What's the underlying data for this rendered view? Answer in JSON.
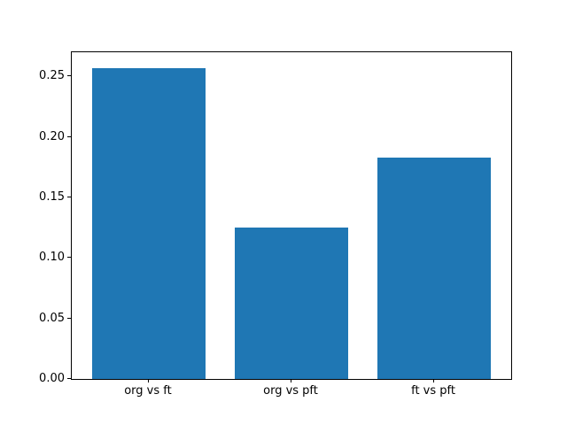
{
  "chart_data": {
    "type": "bar",
    "categories": [
      "org vs ft",
      "org vs pft",
      "ft vs pft"
    ],
    "values": [
      0.257,
      0.125,
      0.183
    ],
    "title": "",
    "xlabel": "",
    "ylabel": "",
    "ylim": [
      0,
      0.27
    ],
    "yticks": [
      0.0,
      0.05,
      0.1,
      0.15,
      0.2,
      0.25
    ],
    "ytick_label_format": "2-decimals",
    "bar_color": "#1f77b4",
    "bar_width_fraction": 0.8,
    "grid": false,
    "legend": null,
    "background_color": "#ffffff",
    "spine_color": "#000000"
  }
}
